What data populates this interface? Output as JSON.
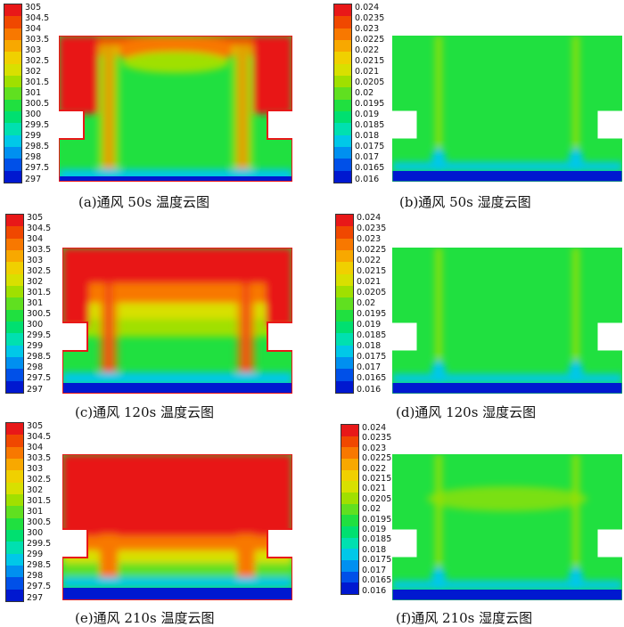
{
  "palette": [
    "#0018d0",
    "#0050e8",
    "#0090f0",
    "#00c8e8",
    "#00e0b0",
    "#00e070",
    "#20e040",
    "#60e020",
    "#a0e000",
    "#d8e000",
    "#f0d000",
    "#f8a800",
    "#f87800",
    "#f04800",
    "#e81818"
  ],
  "temp_ticks": [
    "305",
    "304.5",
    "304",
    "303.5",
    "303",
    "302.5",
    "302",
    "301.5",
    "301",
    "300.5",
    "300",
    "299.5",
    "299",
    "298.5",
    "298",
    "297.5",
    "297"
  ],
  "hum_ticks": [
    "0.024",
    "0.0235",
    "0.023",
    "0.0225",
    "0.022",
    "0.0215",
    "0.021",
    "0.0205",
    "0.02",
    "0.0195",
    "0.019",
    "0.0185",
    "0.018",
    "0.0175",
    "0.017",
    "0.0165",
    "0.016"
  ],
  "panels": [
    {
      "kind": "temperature",
      "caption": "(a)通风 50s 温度云图"
    },
    {
      "kind": "humidity",
      "caption": "(b)通风 50s 湿度云图"
    },
    {
      "kind": "temperature",
      "caption": "(c)通风 120s 温度云图"
    },
    {
      "kind": "humidity",
      "caption": "(d)通风 120s 湿度云图"
    },
    {
      "kind": "temperature",
      "caption": "(e)通风 210s 温度云图"
    },
    {
      "kind": "humidity",
      "caption": "(f)通风 210s 湿度云图"
    }
  ]
}
